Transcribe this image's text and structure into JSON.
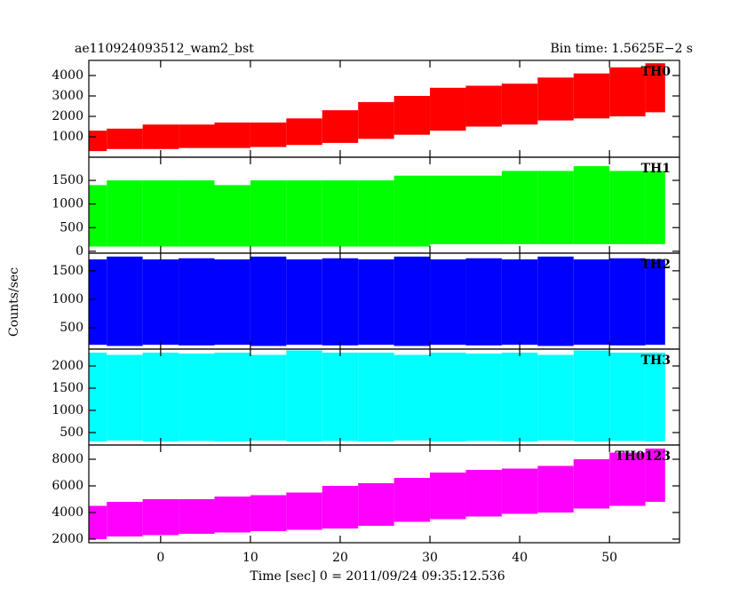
{
  "chart_data": [
    {
      "type": "range-area",
      "title": "ae110924093512_wam2_bst",
      "subtitle": "Bin time: 1.5625E−2 s",
      "label": "TH0",
      "color": "#ff0000",
      "x": [
        -8,
        -4,
        0,
        4,
        8,
        12,
        16,
        20,
        24,
        28,
        32,
        36,
        40,
        44,
        48,
        52,
        56
      ],
      "low": [
        300,
        400,
        400,
        450,
        450,
        500,
        600,
        700,
        900,
        1100,
        1300,
        1500,
        1600,
        1800,
        1900,
        2000,
        2200
      ],
      "high": [
        1300,
        1400,
        1600,
        1600,
        1700,
        1700,
        1900,
        2300,
        2700,
        3000,
        3400,
        3500,
        3600,
        3900,
        4100,
        4400,
        4600
      ],
      "xlim": [
        -8,
        57.8
      ],
      "xticks": [
        0,
        10,
        20,
        30,
        40,
        50
      ],
      "ylim": [
        0,
        4740
      ],
      "yticks": [
        1000,
        2000,
        3000,
        4000
      ]
    },
    {
      "type": "range-area",
      "label": "TH1",
      "color": "#00ff00",
      "x": [
        -8,
        -4,
        0,
        4,
        8,
        12,
        16,
        20,
        24,
        28,
        32,
        36,
        40,
        44,
        48,
        52,
        56
      ],
      "low": [
        100,
        100,
        100,
        100,
        100,
        100,
        100,
        100,
        100,
        100,
        150,
        150,
        150,
        150,
        150,
        150,
        150
      ],
      "high": [
        1400,
        1500,
        1500,
        1500,
        1400,
        1500,
        1500,
        1500,
        1500,
        1600,
        1600,
        1600,
        1700,
        1700,
        1800,
        1700,
        1700
      ],
      "xlim": [
        -8,
        57.8
      ],
      "xticks": [
        0,
        10,
        20,
        30,
        40,
        50
      ],
      "ylim": [
        -40,
        1990
      ],
      "yticks": [
        0,
        500,
        1000,
        1500
      ]
    },
    {
      "type": "range-area",
      "ylabel": "Counts/sec",
      "label": "TH2",
      "color": "#0000ff",
      "x": [
        -8,
        -4,
        0,
        4,
        8,
        12,
        16,
        20,
        24,
        28,
        32,
        36,
        40,
        44,
        48,
        52,
        56
      ],
      "low": [
        200,
        180,
        200,
        190,
        200,
        180,
        200,
        190,
        200,
        180,
        200,
        190,
        200,
        180,
        200,
        190,
        200
      ],
      "high": [
        1700,
        1750,
        1700,
        1720,
        1700,
        1750,
        1700,
        1720,
        1700,
        1750,
        1700,
        1720,
        1700,
        1750,
        1700,
        1720,
        1700
      ],
      "xlim": [
        -8,
        57.8
      ],
      "xticks": [
        0,
        10,
        20,
        30,
        40,
        50
      ],
      "ylim": [
        125,
        1810
      ],
      "yticks": [
        500,
        1000,
        1500
      ]
    },
    {
      "type": "range-area",
      "label": "TH3",
      "color": "#00ffff",
      "x": [
        -8,
        -4,
        0,
        4,
        8,
        12,
        16,
        20,
        24,
        28,
        32,
        36,
        40,
        44,
        48,
        52,
        56
      ],
      "low": [
        300,
        320,
        300,
        310,
        300,
        320,
        300,
        310,
        300,
        320,
        300,
        310,
        300,
        320,
        300,
        310,
        300
      ],
      "high": [
        2300,
        2250,
        2300,
        2280,
        2300,
        2250,
        2350,
        2300,
        2300,
        2250,
        2300,
        2280,
        2300,
        2250,
        2350,
        2300,
        2300
      ],
      "xlim": [
        -8,
        57.8
      ],
      "xticks": [
        0,
        10,
        20,
        30,
        40,
        50
      ],
      "ylim": [
        220,
        2380
      ],
      "yticks": [
        500,
        1000,
        1500,
        2000
      ]
    },
    {
      "type": "range-area",
      "xlabel": "Time [sec] 0 = 2011/09/24 09:35:12.536",
      "label": "TH0123",
      "color": "#ff00ff",
      "x": [
        -8,
        -4,
        0,
        4,
        8,
        12,
        16,
        20,
        24,
        28,
        32,
        36,
        40,
        44,
        48,
        52,
        56
      ],
      "low": [
        2000,
        2200,
        2300,
        2400,
        2500,
        2600,
        2700,
        2800,
        3000,
        3300,
        3500,
        3700,
        3900,
        4000,
        4300,
        4500,
        4800
      ],
      "high": [
        4500,
        4800,
        5000,
        5000,
        5200,
        5300,
        5500,
        6000,
        6200,
        6600,
        7000,
        7200,
        7300,
        7500,
        8000,
        8500,
        8800
      ],
      "xlim": [
        -8,
        57.8
      ],
      "xticks": [
        0,
        10,
        20,
        30,
        40,
        50
      ],
      "ylim": [
        1730,
        9070
      ],
      "yticks": [
        2000,
        4000,
        6000,
        8000
      ]
    }
  ]
}
